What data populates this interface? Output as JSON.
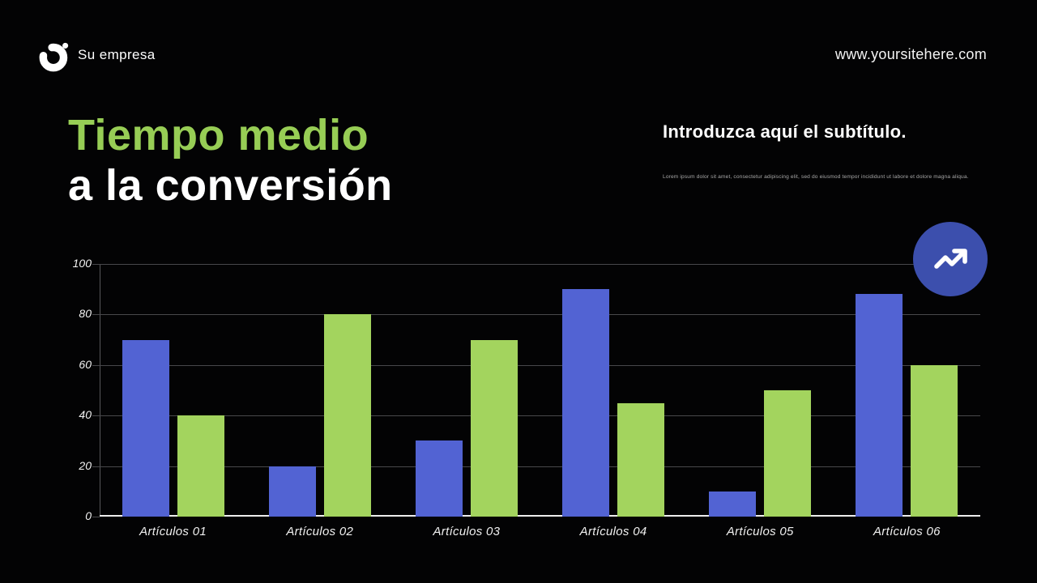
{
  "header": {
    "brand": "Su empresa",
    "website": "www.yoursitehere.com"
  },
  "title": {
    "line1": "Tiempo medio",
    "line2": "a la conversión"
  },
  "subtitle": {
    "heading": "Introduzca aquí el subtítulo.",
    "body": "Lorem ipsum dolor sit amet, consectetur adipiscing elit, sed do eiusmod tempor incididunt ut labore et dolore magna aliqua."
  },
  "icons": {
    "trend_badge": "trending-up-icon",
    "logo": "brand-logo"
  },
  "colors": {
    "background": "#030304",
    "title_green": "#97cd55",
    "bar_blue": "#5263d3",
    "bar_green": "#a3d45e",
    "badge_blue": "#3c4fad",
    "gridline": "#48484b",
    "axis_text": "#f2f2f2"
  },
  "chart_data": {
    "type": "bar",
    "categories": [
      "Artículos 01",
      "Artículos 02",
      "Artículos 03",
      "Artículos 04",
      "Artículos 05",
      "Artículos 06"
    ],
    "series": [
      {
        "name": "serie-azul",
        "color": "#5263d3",
        "values": [
          70,
          20,
          30,
          90,
          10,
          88
        ]
      },
      {
        "name": "serie-verde",
        "color": "#a3d45e",
        "values": [
          40,
          80,
          70,
          45,
          50,
          60
        ]
      }
    ],
    "title": "",
    "xlabel": "",
    "ylabel": "",
    "ylim": [
      0,
      100
    ],
    "yticks": [
      0,
      20,
      40,
      60,
      80,
      100
    ],
    "grid": true,
    "legend_position": "none"
  }
}
